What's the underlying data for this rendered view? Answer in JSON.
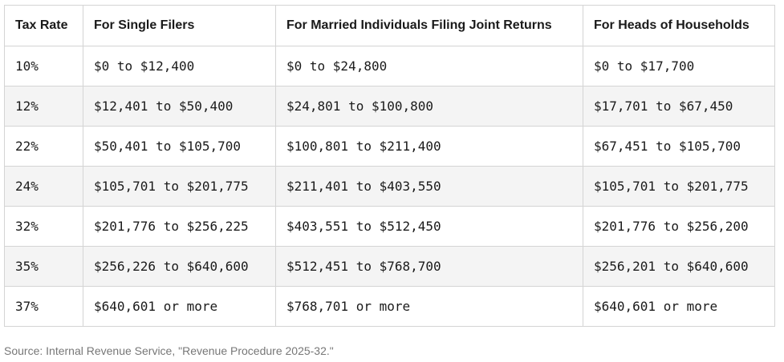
{
  "table": {
    "headers": [
      "Tax Rate",
      "For Single Filers",
      "For Married Individuals Filing Joint Returns",
      "For Heads of Households"
    ],
    "rows": [
      [
        "10%",
        "$0 to $12,400",
        "$0 to $24,800",
        "$0 to $17,700"
      ],
      [
        "12%",
        "$12,401 to $50,400",
        "$24,801 to $100,800",
        "$17,701 to $67,450"
      ],
      [
        "22%",
        "$50,401 to $105,700",
        "$100,801 to $211,400",
        "$67,451 to $105,700"
      ],
      [
        "24%",
        "$105,701 to $201,775",
        "$211,401 to $403,550",
        "$105,701 to $201,775"
      ],
      [
        "32%",
        "$201,776 to $256,225",
        "$403,551 to $512,450",
        "$201,776 to $256,200"
      ],
      [
        "35%",
        "$256,226 to $640,600",
        "$512,451 to $768,700",
        "$256,201 to $640,600"
      ],
      [
        "37%",
        "$640,601 or more",
        "$768,701 or more",
        "$640,601 or more"
      ]
    ]
  },
  "source": "Source: Internal Revenue Service, \"Revenue Procedure 2025-32.\""
}
